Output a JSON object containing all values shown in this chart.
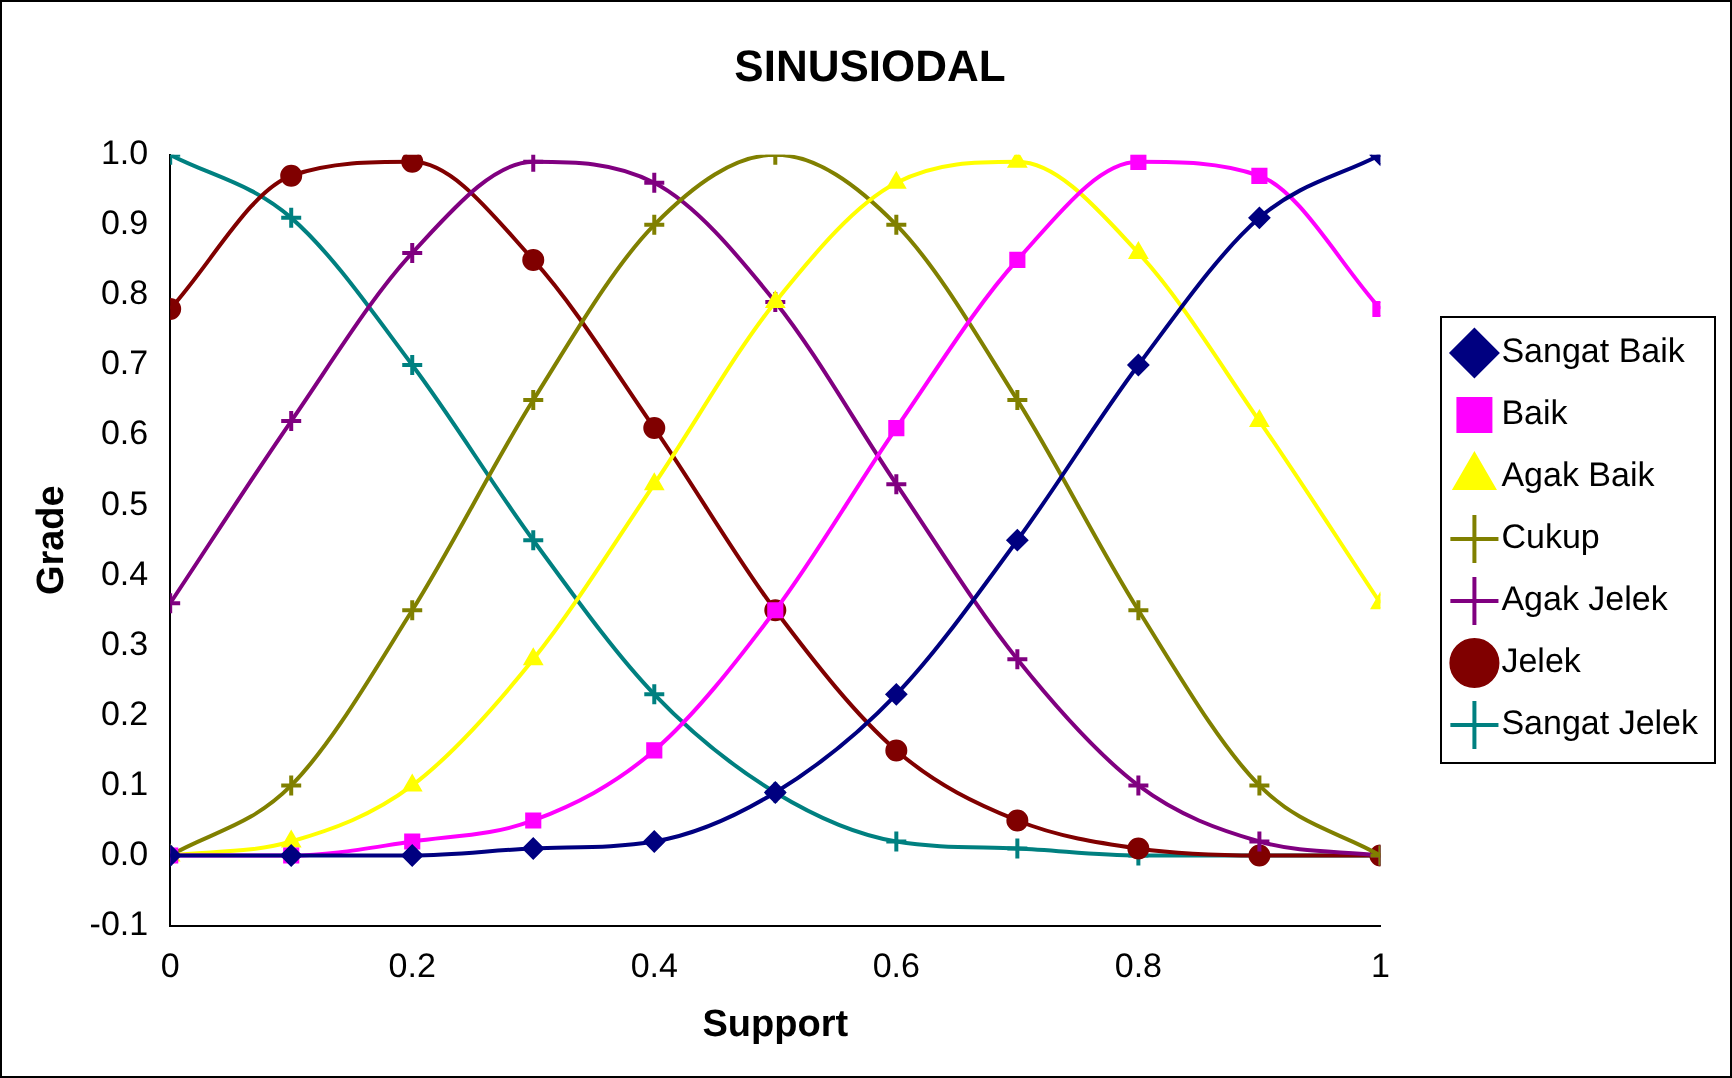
{
  "chart_data": {
    "type": "line",
    "title": "SINUSIODAL",
    "xlabel": "Support",
    "ylabel": "Grade",
    "x": [
      0,
      0.1,
      0.2,
      0.3,
      0.4,
      0.5,
      0.6,
      0.7,
      0.8,
      0.9,
      1
    ],
    "xlim": [
      0,
      1
    ],
    "xticks": [
      0,
      0.2,
      0.4,
      0.6,
      0.8,
      1
    ],
    "ylim": [
      -0.1,
      1.0
    ],
    "yticks": [
      -0.1,
      {
        "value": 0,
        "label": "0.0"
      },
      0.1,
      0.2,
      0.3,
      0.4,
      0.5,
      0.6,
      0.7,
      0.8,
      0.9,
      {
        "value": 1,
        "label": "1.0"
      }
    ],
    "grid": false,
    "legend": "right",
    "series": [
      {
        "name": "Sangat Baik",
        "color": "#000080",
        "marker": "diamond",
        "values": [
          0,
          0,
          0,
          0.01,
          0.02,
          0.09,
          0.23,
          0.45,
          0.7,
          0.91,
          1.0
        ]
      },
      {
        "name": "Baik",
        "color": "#ff00ff",
        "marker": "square",
        "values": [
          0,
          0,
          0.02,
          0.05,
          0.15,
          0.35,
          0.61,
          0.85,
          0.99,
          0.97,
          0.78
        ]
      },
      {
        "name": "Agak Baik",
        "color": "#ffff00",
        "marker": "triangle",
        "values": [
          0,
          0.02,
          0.1,
          0.28,
          0.53,
          0.79,
          0.96,
          0.99,
          0.86,
          0.62,
          0.36
        ]
      },
      {
        "name": "Cukup",
        "color": "#808000",
        "marker": "cross",
        "values": [
          0,
          0.1,
          0.35,
          0.65,
          0.9,
          1.0,
          0.9,
          0.65,
          0.35,
          0.1,
          0
        ]
      },
      {
        "name": "Agak Jelek",
        "color": "#800080",
        "marker": "cross",
        "values": [
          0.36,
          0.62,
          0.86,
          0.99,
          0.96,
          0.79,
          0.53,
          0.28,
          0.1,
          0.02,
          0
        ]
      },
      {
        "name": "Jelek",
        "color": "#800000",
        "marker": "circle",
        "values": [
          0.78,
          0.97,
          0.99,
          0.85,
          0.61,
          0.35,
          0.15,
          0.05,
          0.01,
          0,
          0
        ]
      },
      {
        "name": "Sangat Jelek",
        "color": "#008080",
        "marker": "cross",
        "values": [
          1.0,
          0.91,
          0.7,
          0.45,
          0.23,
          0.09,
          0.02,
          0.01,
          0,
          0,
          0
        ]
      }
    ]
  }
}
